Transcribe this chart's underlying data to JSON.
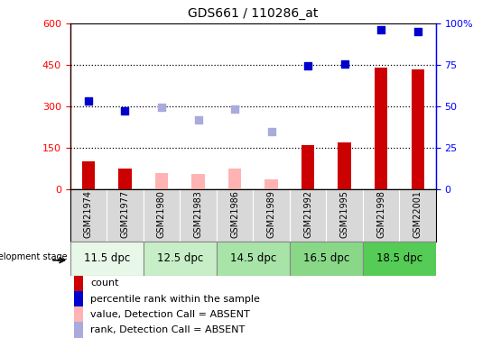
{
  "title": "GDS661 / 110286_at",
  "samples": [
    "GSM21974",
    "GSM21977",
    "GSM21980",
    "GSM21983",
    "GSM21986",
    "GSM21989",
    "GSM21992",
    "GSM21995",
    "GSM21998",
    "GSM22001"
  ],
  "count_present": [
    100,
    75,
    null,
    null,
    null,
    null,
    160,
    170,
    440,
    435
  ],
  "count_absent": [
    null,
    null,
    60,
    55,
    75,
    35,
    null,
    null,
    null,
    null
  ],
  "percentile_present": [
    320,
    285,
    null,
    null,
    null,
    null,
    447,
    455,
    577,
    570
  ],
  "percentile_absent": [
    null,
    null,
    298,
    253,
    292,
    210,
    null,
    null,
    null,
    null
  ],
  "dev_stages": [
    {
      "label": "11.5 dpc",
      "start": 0,
      "end": 2,
      "color": "#e8f8e8"
    },
    {
      "label": "12.5 dpc",
      "start": 2,
      "end": 4,
      "color": "#c8eec8"
    },
    {
      "label": "14.5 dpc",
      "start": 4,
      "end": 6,
      "color": "#a8e4a8"
    },
    {
      "label": "16.5 dpc",
      "start": 6,
      "end": 8,
      "color": "#88d888"
    },
    {
      "label": "18.5 dpc",
      "start": 8,
      "end": 10,
      "color": "#55cc55"
    }
  ],
  "ylim_left": [
    0,
    600
  ],
  "ylim_right": [
    0,
    100
  ],
  "yticks_left": [
    0,
    150,
    300,
    450,
    600
  ],
  "yticks_right": [
    0,
    25,
    50,
    75,
    100
  ],
  "color_count_present": "#cc0000",
  "color_count_absent": "#ffb3b3",
  "color_rank_present": "#0000cc",
  "color_rank_absent": "#aaaadd",
  "legend_items": [
    {
      "label": "count",
      "color": "#cc0000"
    },
    {
      "label": "percentile rank within the sample",
      "color": "#0000cc"
    },
    {
      "label": "value, Detection Call = ABSENT",
      "color": "#ffb3b3"
    },
    {
      "label": "rank, Detection Call = ABSENT",
      "color": "#aaaadd"
    }
  ],
  "xticklabel_bg": "#d8d8d8",
  "stage_border": "#888888"
}
